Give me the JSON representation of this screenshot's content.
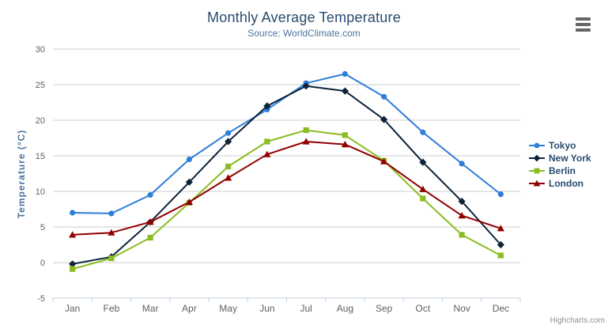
{
  "chart_data": {
    "type": "line",
    "title": "Monthly Average Temperature",
    "subtitle": "Source: WorldClimate.com",
    "xlabel": "",
    "ylabel": "Temperature (°C)",
    "categories": [
      "Jan",
      "Feb",
      "Mar",
      "Apr",
      "May",
      "Jun",
      "Jul",
      "Aug",
      "Sep",
      "Oct",
      "Nov",
      "Dec"
    ],
    "ylim": [
      -5,
      30
    ],
    "ytick_step": 5,
    "grid": true,
    "legend_position": "right",
    "series": [
      {
        "name": "Tokyo",
        "color": "#2f7ed8",
        "marker": "circle",
        "values": [
          7.0,
          6.9,
          9.5,
          14.5,
          18.2,
          21.5,
          25.2,
          26.5,
          23.3,
          18.3,
          13.9,
          9.6
        ]
      },
      {
        "name": "New York",
        "color": "#0d233a",
        "marker": "diamond",
        "values": [
          -0.2,
          0.8,
          5.7,
          11.3,
          17.0,
          22.0,
          24.8,
          24.1,
          20.1,
          14.1,
          8.6,
          2.5
        ]
      },
      {
        "name": "Berlin",
        "color": "#8bbc21",
        "marker": "square",
        "values": [
          -0.9,
          0.6,
          3.5,
          8.4,
          13.5,
          17.0,
          18.6,
          17.9,
          14.3,
          9.0,
          3.9,
          1.0
        ]
      },
      {
        "name": "London",
        "color": "#910000",
        "marker": "triangle",
        "values": [
          3.9,
          4.2,
          5.7,
          8.5,
          11.9,
          15.2,
          17.0,
          16.6,
          14.2,
          10.3,
          6.6,
          4.8
        ]
      }
    ]
  },
  "colors": {
    "title": "#274b6d",
    "subtitle": "#4d759e",
    "axis_title": "#4d759e",
    "tick_label": "#606060",
    "grid_line": "#cccccc",
    "axis_line": "#c0d0e0",
    "legend_text": "#274b6d",
    "menu_icon": "#666666",
    "credits": "#909090"
  },
  "credits": {
    "label": "Highcharts.com"
  }
}
